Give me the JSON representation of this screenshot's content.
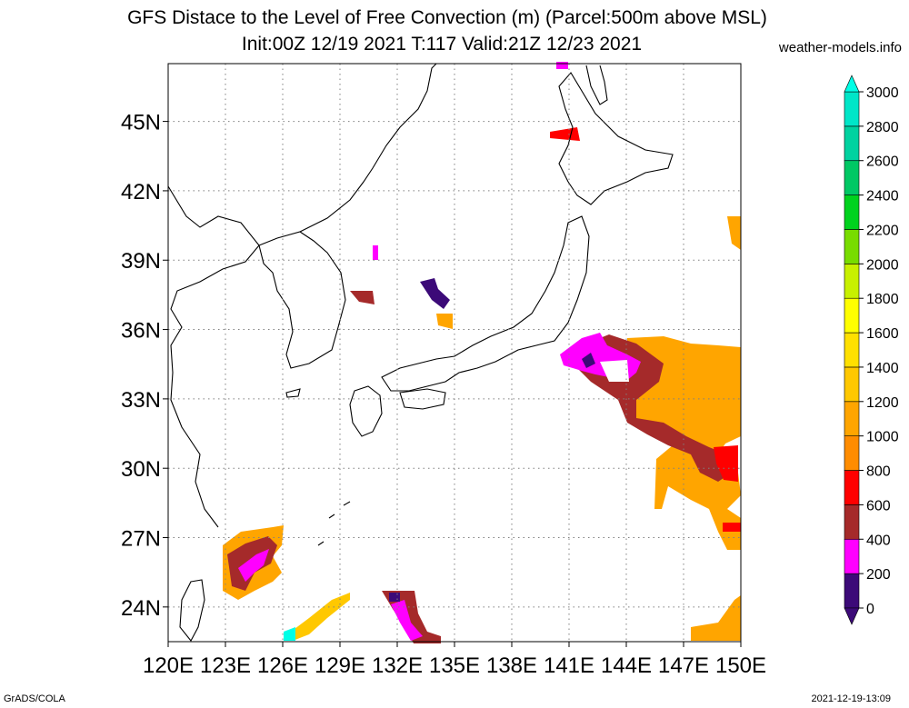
{
  "header": {
    "title_line1": "GFS Distace to the Level of Free Convection (m) (Parcel:500m above MSL)",
    "title_line2": "Init:00Z 12/19 2021 T:117 Valid:21Z 12/23 2021",
    "site": "weather-models.info"
  },
  "footer": {
    "left": "GrADS/COLA",
    "right": "2021-12-19-13:09"
  },
  "map": {
    "lon_range": [
      120,
      150
    ],
    "lat_range": [
      22.5,
      47.5
    ],
    "lon_ticks": [
      {
        "value": 120,
        "label": "120E"
      },
      {
        "value": 123,
        "label": "123E"
      },
      {
        "value": 126,
        "label": "126E"
      },
      {
        "value": 129,
        "label": "129E"
      },
      {
        "value": 132,
        "label": "132E"
      },
      {
        "value": 135,
        "label": "135E"
      },
      {
        "value": 138,
        "label": "138E"
      },
      {
        "value": 141,
        "label": "141E"
      },
      {
        "value": 144,
        "label": "144E"
      },
      {
        "value": 147,
        "label": "147E"
      },
      {
        "value": 150,
        "label": "150E"
      }
    ],
    "lat_ticks": [
      {
        "value": 24,
        "label": "24N"
      },
      {
        "value": 27,
        "label": "27N"
      },
      {
        "value": 30,
        "label": "30N"
      },
      {
        "value": 33,
        "label": "33N"
      },
      {
        "value": 36,
        "label": "36N"
      },
      {
        "value": 39,
        "label": "39N"
      },
      {
        "value": 42,
        "label": "42N"
      },
      {
        "value": 45,
        "label": "45N"
      }
    ],
    "grid": "dotted"
  },
  "colorbar": {
    "levels": [
      "0",
      "200",
      "400",
      "600",
      "800",
      "1000",
      "1200",
      "1400",
      "1600",
      "1800",
      "2000",
      "2200",
      "2400",
      "2600",
      "2800",
      "3000"
    ],
    "colors": [
      "#3c0a78",
      "#ff00ff",
      "#a52a2a",
      "#ff0000",
      "#ff8c00",
      "#ffa500",
      "#ffc800",
      "#ffe000",
      "#ffff00",
      "#c8f000",
      "#78dc00",
      "#00d21e",
      "#00c864",
      "#00d2a0",
      "#00e6c8",
      "#00ffe6"
    ],
    "under_color": "#3c0a78",
    "over_color": "#00ffe6"
  }
}
